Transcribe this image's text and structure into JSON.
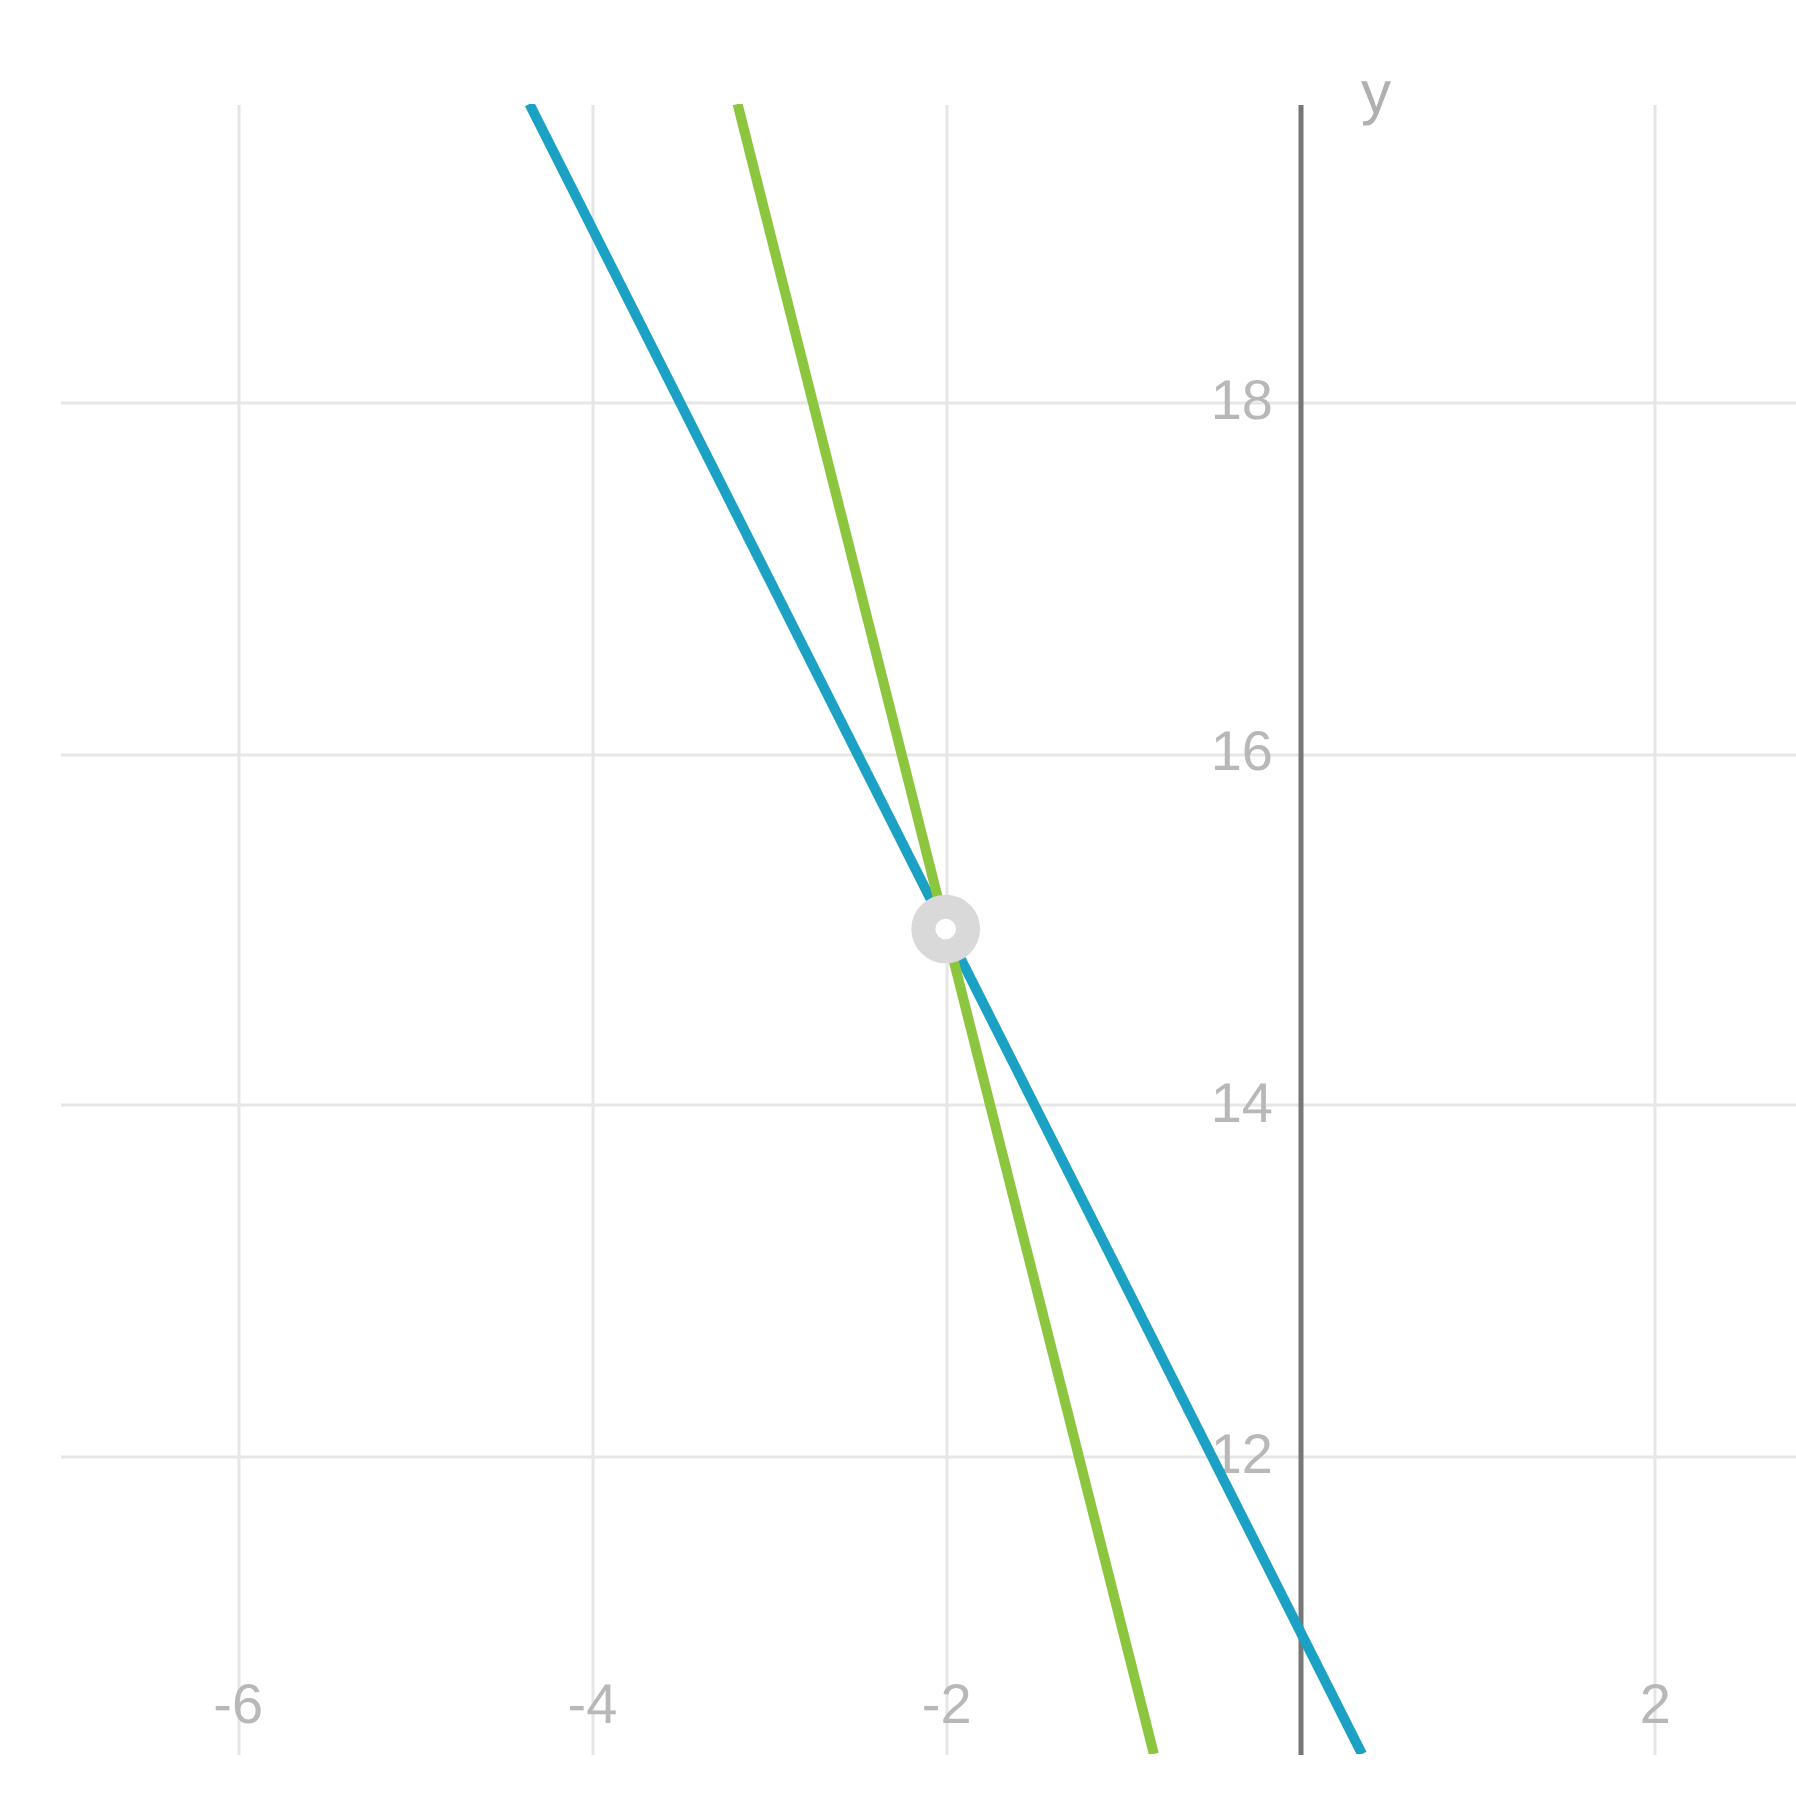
{
  "chart_data": {
    "type": "line",
    "ylabel": "y",
    "xlim": [
      -7,
      2.8
    ],
    "ylim": [
      10.3,
      19.7
    ],
    "xticks": [
      -6,
      -4,
      -2,
      2
    ],
    "yticks": [
      12,
      14,
      16,
      18
    ],
    "grid": true,
    "series": [
      {
        "color": "#1ba1c4",
        "x": [
          -4.35,
          0.35
        ],
        "values": [
          19.7,
          10.3
        ]
      },
      {
        "color": "#8cc63f",
        "x": [
          -3.175,
          -0.825
        ],
        "values": [
          19.7,
          10.3
        ]
      },
      {
        "type": "scatter",
        "color": "#ffffff",
        "marker": "circle",
        "x": [
          -2
        ],
        "values": [
          15
        ]
      }
    ]
  }
}
